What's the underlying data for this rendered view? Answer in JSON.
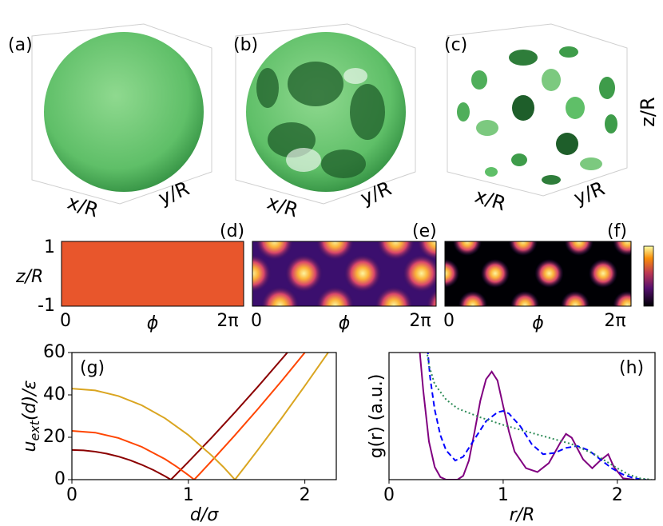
{
  "panels": [
    {
      "label": "(a)",
      "xlabel": "x/R",
      "ylabel": "y/R"
    },
    {
      "label": "(b)",
      "xlabel": "x/R",
      "ylabel": "y/R"
    },
    {
      "label": "(c)",
      "xlabel": "x/R",
      "ylabel": "y/R",
      "zlabel": "z/R"
    }
  ],
  "heatmaps": [
    {
      "label": "(d)",
      "ylabel": "z/R",
      "yticks": [
        1,
        -1
      ],
      "xticks": [
        0,
        "2π"
      ],
      "xlabel": "ϕ"
    },
    {
      "label": "(e)",
      "xticks": [
        0,
        "2π"
      ],
      "xlabel": "ϕ"
    },
    {
      "label": "(f)",
      "xticks": [
        0,
        "2π"
      ],
      "xlabel": "ϕ"
    }
  ],
  "chart_data": [
    {
      "type": "line",
      "label": "(g)",
      "ylabel": {
        "base": "u",
        "sub": "ext",
        "rest": "(d)/ε"
      },
      "xlabel": "d/σ",
      "xlim": [
        0,
        2.27
      ],
      "xticks": [
        0,
        1,
        2
      ],
      "ylim": [
        0,
        60
      ],
      "yticks": [
        0,
        20,
        40,
        60
      ],
      "series": [
        {
          "color": "#8b0000",
          "x": [
            0,
            0.1,
            0.2,
            0.3,
            0.4,
            0.5,
            0.6,
            0.7,
            0.8,
            0.85,
            0.9,
            1.0,
            1.2,
            1.4,
            1.6,
            1.85
          ],
          "values": [
            14,
            13.81,
            13.22,
            12.26,
            10.9,
            9.16,
            7.02,
            4.51,
            1.6,
            0,
            2.76,
            8.36,
            19.86,
            31.76,
            44.06,
            60
          ]
        },
        {
          "color": "#ff4500",
          "x": [
            0,
            0.2,
            0.4,
            0.6,
            0.8,
            0.9,
            1.0,
            1.05,
            1.1,
            1.2,
            1.4,
            1.6,
            1.8,
            2.0
          ],
          "values": [
            23,
            22.17,
            19.66,
            15.49,
            9.65,
            6.1,
            2.14,
            0,
            2.91,
            8.82,
            20.97,
            33.54,
            46.55,
            60
          ]
        },
        {
          "color": "#daa520",
          "x": [
            0,
            0.2,
            0.4,
            0.6,
            0.8,
            1.0,
            1.2,
            1.3,
            1.4,
            1.5,
            1.6,
            1.8,
            2.0,
            2.2
          ],
          "values": [
            43,
            42.12,
            39.49,
            35.1,
            28.96,
            21.06,
            11.41,
            6.0,
            0,
            7.06,
            14.25,
            29.0,
            44.25,
            60
          ]
        }
      ]
    },
    {
      "type": "line",
      "label": "(h)",
      "ylabel": {
        "base": "g(r)  (a.u.)"
      },
      "xlabel": "r/R",
      "xlim": [
        0,
        2.33
      ],
      "xticks": [
        0,
        1,
        2
      ],
      "ylim": [
        0,
        10
      ],
      "yticks": [],
      "series": [
        {
          "color": "#800080",
          "dash": "none",
          "x": [
            0.25,
            0.3,
            0.35,
            0.4,
            0.45,
            0.5,
            0.6,
            0.65,
            0.7,
            0.75,
            0.8,
            0.85,
            0.9,
            0.95,
            1.0,
            1.05,
            1.1,
            1.2,
            1.3,
            1.4,
            1.5,
            1.55,
            1.6,
            1.7,
            1.78,
            1.85,
            1.92,
            1.97,
            2.05,
            2.15
          ],
          "values": [
            12,
            7,
            3,
            1,
            0.2,
            0,
            0,
            0.3,
            1.5,
            3.8,
            6.2,
            7.9,
            8.5,
            7.8,
            5.8,
            3.8,
            2.2,
            0.9,
            0.6,
            1.3,
            2.9,
            3.6,
            3.3,
            1.6,
            0.9,
            1.5,
            2.0,
            1.0,
            0.1,
            0
          ]
        },
        {
          "color": "#0000ff",
          "dash": "7 4",
          "x": [
            0.33,
            0.36,
            0.4,
            0.45,
            0.5,
            0.58,
            0.65,
            0.75,
            0.85,
            0.95,
            1.0,
            1.05,
            1.15,
            1.25,
            1.35,
            1.45,
            1.55,
            1.65,
            1.75,
            1.85,
            1.95,
            2.05,
            2.15,
            2.25
          ],
          "values": [
            11,
            8,
            5.5,
            3.5,
            2.3,
            1.5,
            1.8,
            3.2,
            4.6,
            5.3,
            5.4,
            5.2,
            4.2,
            2.8,
            2.0,
            2.1,
            2.5,
            2.65,
            2.3,
            1.6,
            0.9,
            0.4,
            0.1,
            0
          ]
        },
        {
          "color": "#2e8b57",
          "dash": "2 3",
          "x": [
            0.3,
            0.35,
            0.4,
            0.5,
            0.6,
            0.8,
            1.0,
            1.2,
            1.4,
            1.6,
            1.8,
            2.0,
            2.1,
            2.2,
            2.3
          ],
          "values": [
            12,
            9,
            7.5,
            6.3,
            5.6,
            4.9,
            4.3,
            3.8,
            3.3,
            2.8,
            2.0,
            0.9,
            0.4,
            0.1,
            0
          ]
        }
      ]
    }
  ]
}
